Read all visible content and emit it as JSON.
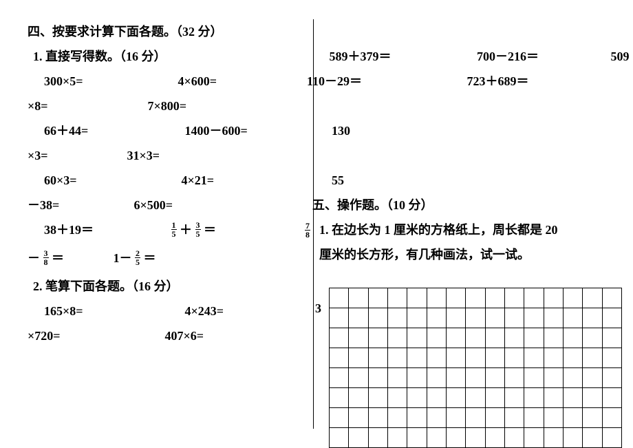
{
  "left": {
    "section4_title": "四、按要求计算下面各题。（32 分）",
    "q1_title": "1. 直接写得数。（16 分）",
    "row1_a": "300×5=",
    "row1_b": "4×600=",
    "row2_a": "×8=",
    "row2_b": "7×800=",
    "row3_a": "66＋44=",
    "row3_b": "1400－600=",
    "row4_a": "×3=",
    "row4_b": "31×3=",
    "row5_a": "60×3=",
    "row5_b": "4×21=",
    "row6_a": "－38=",
    "row6_b": "6×500=",
    "row7_a": "38＋19＝",
    "row8_frac_n1": "3",
    "row8_frac_d1": "8",
    "row8_b_prefix": "1－",
    "row8_frac_n2": "2",
    "row8_frac_d2": "5",
    "row7_frac_n1": "1",
    "row7_frac_d1": "5",
    "row7_frac_n2": "3",
    "row7_frac_d2": "5",
    "q2_title": "2. 笔算下面各题。（16 分）",
    "row9_a": "165×8=",
    "row9_b": "4×243=",
    "row10_a": "×720=",
    "row10_b": "407×6="
  },
  "right": {
    "r1_a": "589＋379＝",
    "r1_b": "700－216＝",
    "r1_c": "509",
    "r2_a": "110－29＝",
    "r2_b": "723＋689＝",
    "r3": "130",
    "r4": "55",
    "section5_title": "五、操作题。（10 分）",
    "q1_line1": "1. 在边长为 1 厘米的方格纸上，周长都是 20",
    "q1_line2": "厘米的长方形，有几种画法，试一试。",
    "frac78_n": "7",
    "frac78_d": "8",
    "three": "3"
  },
  "grid": {
    "rows": 8,
    "cols": 15
  }
}
